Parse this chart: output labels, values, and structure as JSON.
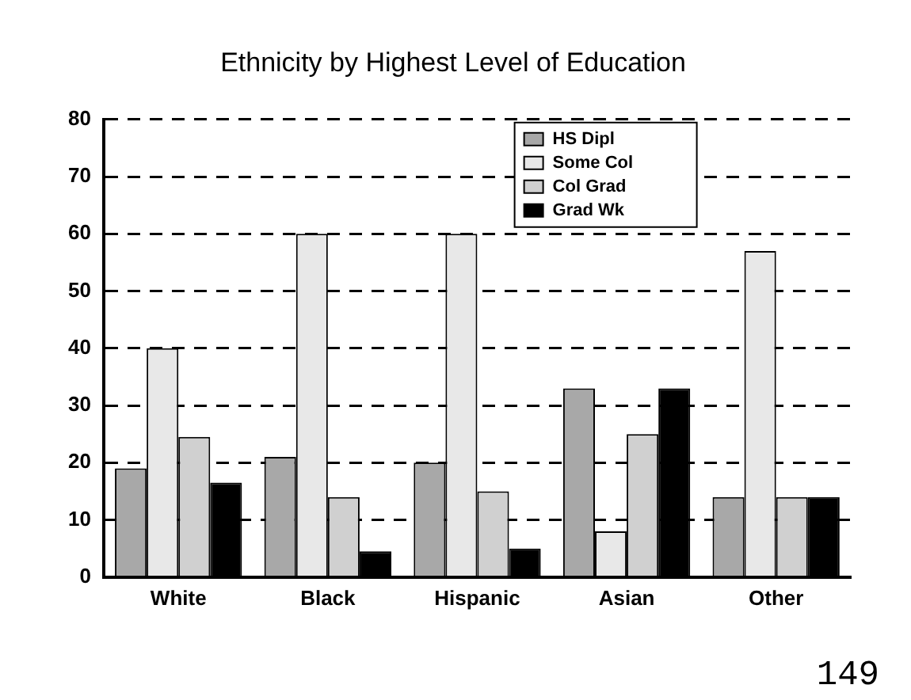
{
  "chart_data": {
    "type": "bar",
    "title": "Ethnicity by Highest Level of Education",
    "categories": [
      "White",
      "Black",
      "Hispanic",
      "Asian",
      "Other"
    ],
    "series": [
      {
        "name": "HS Dipl",
        "color": "#a8a8a8",
        "values": [
          19,
          21,
          20,
          33,
          14
        ]
      },
      {
        "name": "Some Col",
        "color": "#e8e8e8",
        "values": [
          40,
          60,
          60,
          8,
          57
        ]
      },
      {
        "name": "Col Grad",
        "color": "#d0d0d0",
        "values": [
          24.5,
          14,
          15,
          25,
          14
        ]
      },
      {
        "name": "Grad Wk",
        "color": "#000000",
        "values": [
          16.5,
          4.5,
          5,
          33,
          14
        ]
      }
    ],
    "ylim": [
      0,
      80
    ],
    "yticks": [
      0,
      10,
      20,
      30,
      40,
      50,
      60,
      70,
      80
    ],
    "grid": "y",
    "legend": "top right",
    "annotations": [
      "149"
    ]
  }
}
